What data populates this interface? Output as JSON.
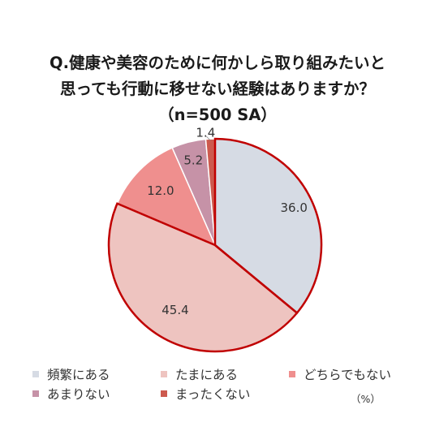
{
  "title": {
    "line1": "Q.健康や美容のために何かしら取り組みたいと",
    "line2": "思っても行動に移せない経験はありますか？",
    "line3": "（n=500 SA）"
  },
  "unit_label": "（%）",
  "colors": {
    "highlight_border": "#c00000",
    "slice_border": "#ffffff"
  },
  "chart_data": {
    "type": "pie",
    "title": "Q.健康や美容のために何かしら取り組みたいと思っても行動に移せない経験はありますか？（n=500 SA）",
    "unit": "%",
    "start_angle": "12 o'clock",
    "direction": "clockwise",
    "legend_position": "bottom",
    "slices": [
      {
        "label": "頻繁にある",
        "value": 36.0,
        "value_label": "36.0",
        "color": "#d6dbe4",
        "highlighted": true
      },
      {
        "label": "たまにある",
        "value": 45.4,
        "value_label": "45.4",
        "color": "#eec4c0",
        "highlighted": true
      },
      {
        "label": "どちらでもない",
        "value": 12.0,
        "value_label": "12.0",
        "color": "#ef8f8e",
        "highlighted": false
      },
      {
        "label": "あまりない",
        "value": 5.2,
        "value_label": "5.2",
        "color": "#c692a7",
        "highlighted": false
      },
      {
        "label": "まったくない",
        "value": 1.4,
        "value_label": "1.4",
        "color": "#cd5a4e",
        "highlighted": false
      }
    ]
  }
}
